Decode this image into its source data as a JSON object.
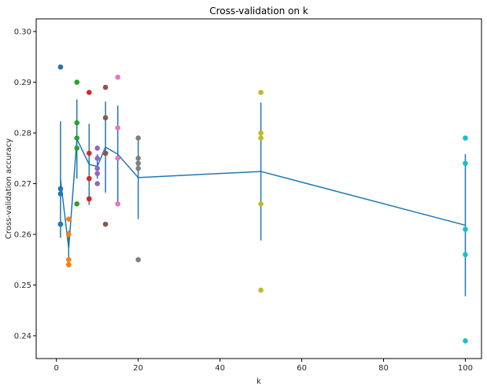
{
  "chart_data": {
    "type": "scatter",
    "title": "Cross-validation on k",
    "xlabel": "k",
    "ylabel": "Cross-validation accuracy",
    "xlim": [
      -4.95,
      103.95
    ],
    "ylim": [
      0.2355,
      0.3025
    ],
    "xticks": [
      0,
      20,
      40,
      60,
      80,
      100
    ],
    "xtick_labels": [
      "0",
      "20",
      "40",
      "60",
      "80",
      "100"
    ],
    "yticks": [
      0.24,
      0.25,
      0.26,
      0.27,
      0.28,
      0.29,
      0.3
    ],
    "ytick_labels": [
      "0.24",
      "0.25",
      "0.26",
      "0.27",
      "0.28",
      "0.29",
      "0.30"
    ],
    "grid": false,
    "legend": "none",
    "points": [
      {
        "k": 1,
        "accuracies": [
          0.293,
          0.269,
          0.268,
          0.262,
          0.262
        ],
        "color": "#1f77b4"
      },
      {
        "k": 3,
        "accuracies": [
          0.263,
          0.26,
          0.255,
          0.254,
          0.254
        ],
        "color": "#ff7f0e"
      },
      {
        "k": 5,
        "accuracies": [
          0.29,
          0.282,
          0.279,
          0.277,
          0.266
        ],
        "color": "#2ca02c"
      },
      {
        "k": 8,
        "accuracies": [
          0.288,
          0.276,
          0.271,
          0.267,
          0.267
        ],
        "color": "#d62728"
      },
      {
        "k": 10,
        "accuracies": [
          0.277,
          0.275,
          0.273,
          0.272,
          0.27
        ],
        "color": "#9467bd"
      },
      {
        "k": 12,
        "accuracies": [
          0.289,
          0.283,
          0.276,
          0.276,
          0.262
        ],
        "color": "#8c564b"
      },
      {
        "k": 15,
        "accuracies": [
          0.291,
          0.281,
          0.275,
          0.266,
          0.266
        ],
        "color": "#e377c2"
      },
      {
        "k": 20,
        "accuracies": [
          0.279,
          0.275,
          0.274,
          0.273,
          0.255
        ],
        "color": "#7f7f7f"
      },
      {
        "k": 50,
        "accuracies": [
          0.288,
          0.28,
          0.279,
          0.266,
          0.249
        ],
        "color": "#bcbd22"
      },
      {
        "k": 100,
        "accuracies": [
          0.279,
          0.274,
          0.261,
          0.256,
          0.239
        ],
        "color": "#17becf"
      }
    ],
    "mean_line": {
      "color": "#1f77b4",
      "x": [
        1,
        3,
        5,
        8,
        10,
        12,
        15,
        20,
        50,
        100
      ],
      "mean": [
        0.2708,
        0.2572,
        0.2788,
        0.2738,
        0.2734,
        0.2772,
        0.2758,
        0.2712,
        0.2724,
        0.2618
      ],
      "std": [
        0.0115,
        0.0035,
        0.0078,
        0.008,
        0.0024,
        0.009,
        0.0096,
        0.0082,
        0.0136,
        0.014
      ]
    }
  }
}
